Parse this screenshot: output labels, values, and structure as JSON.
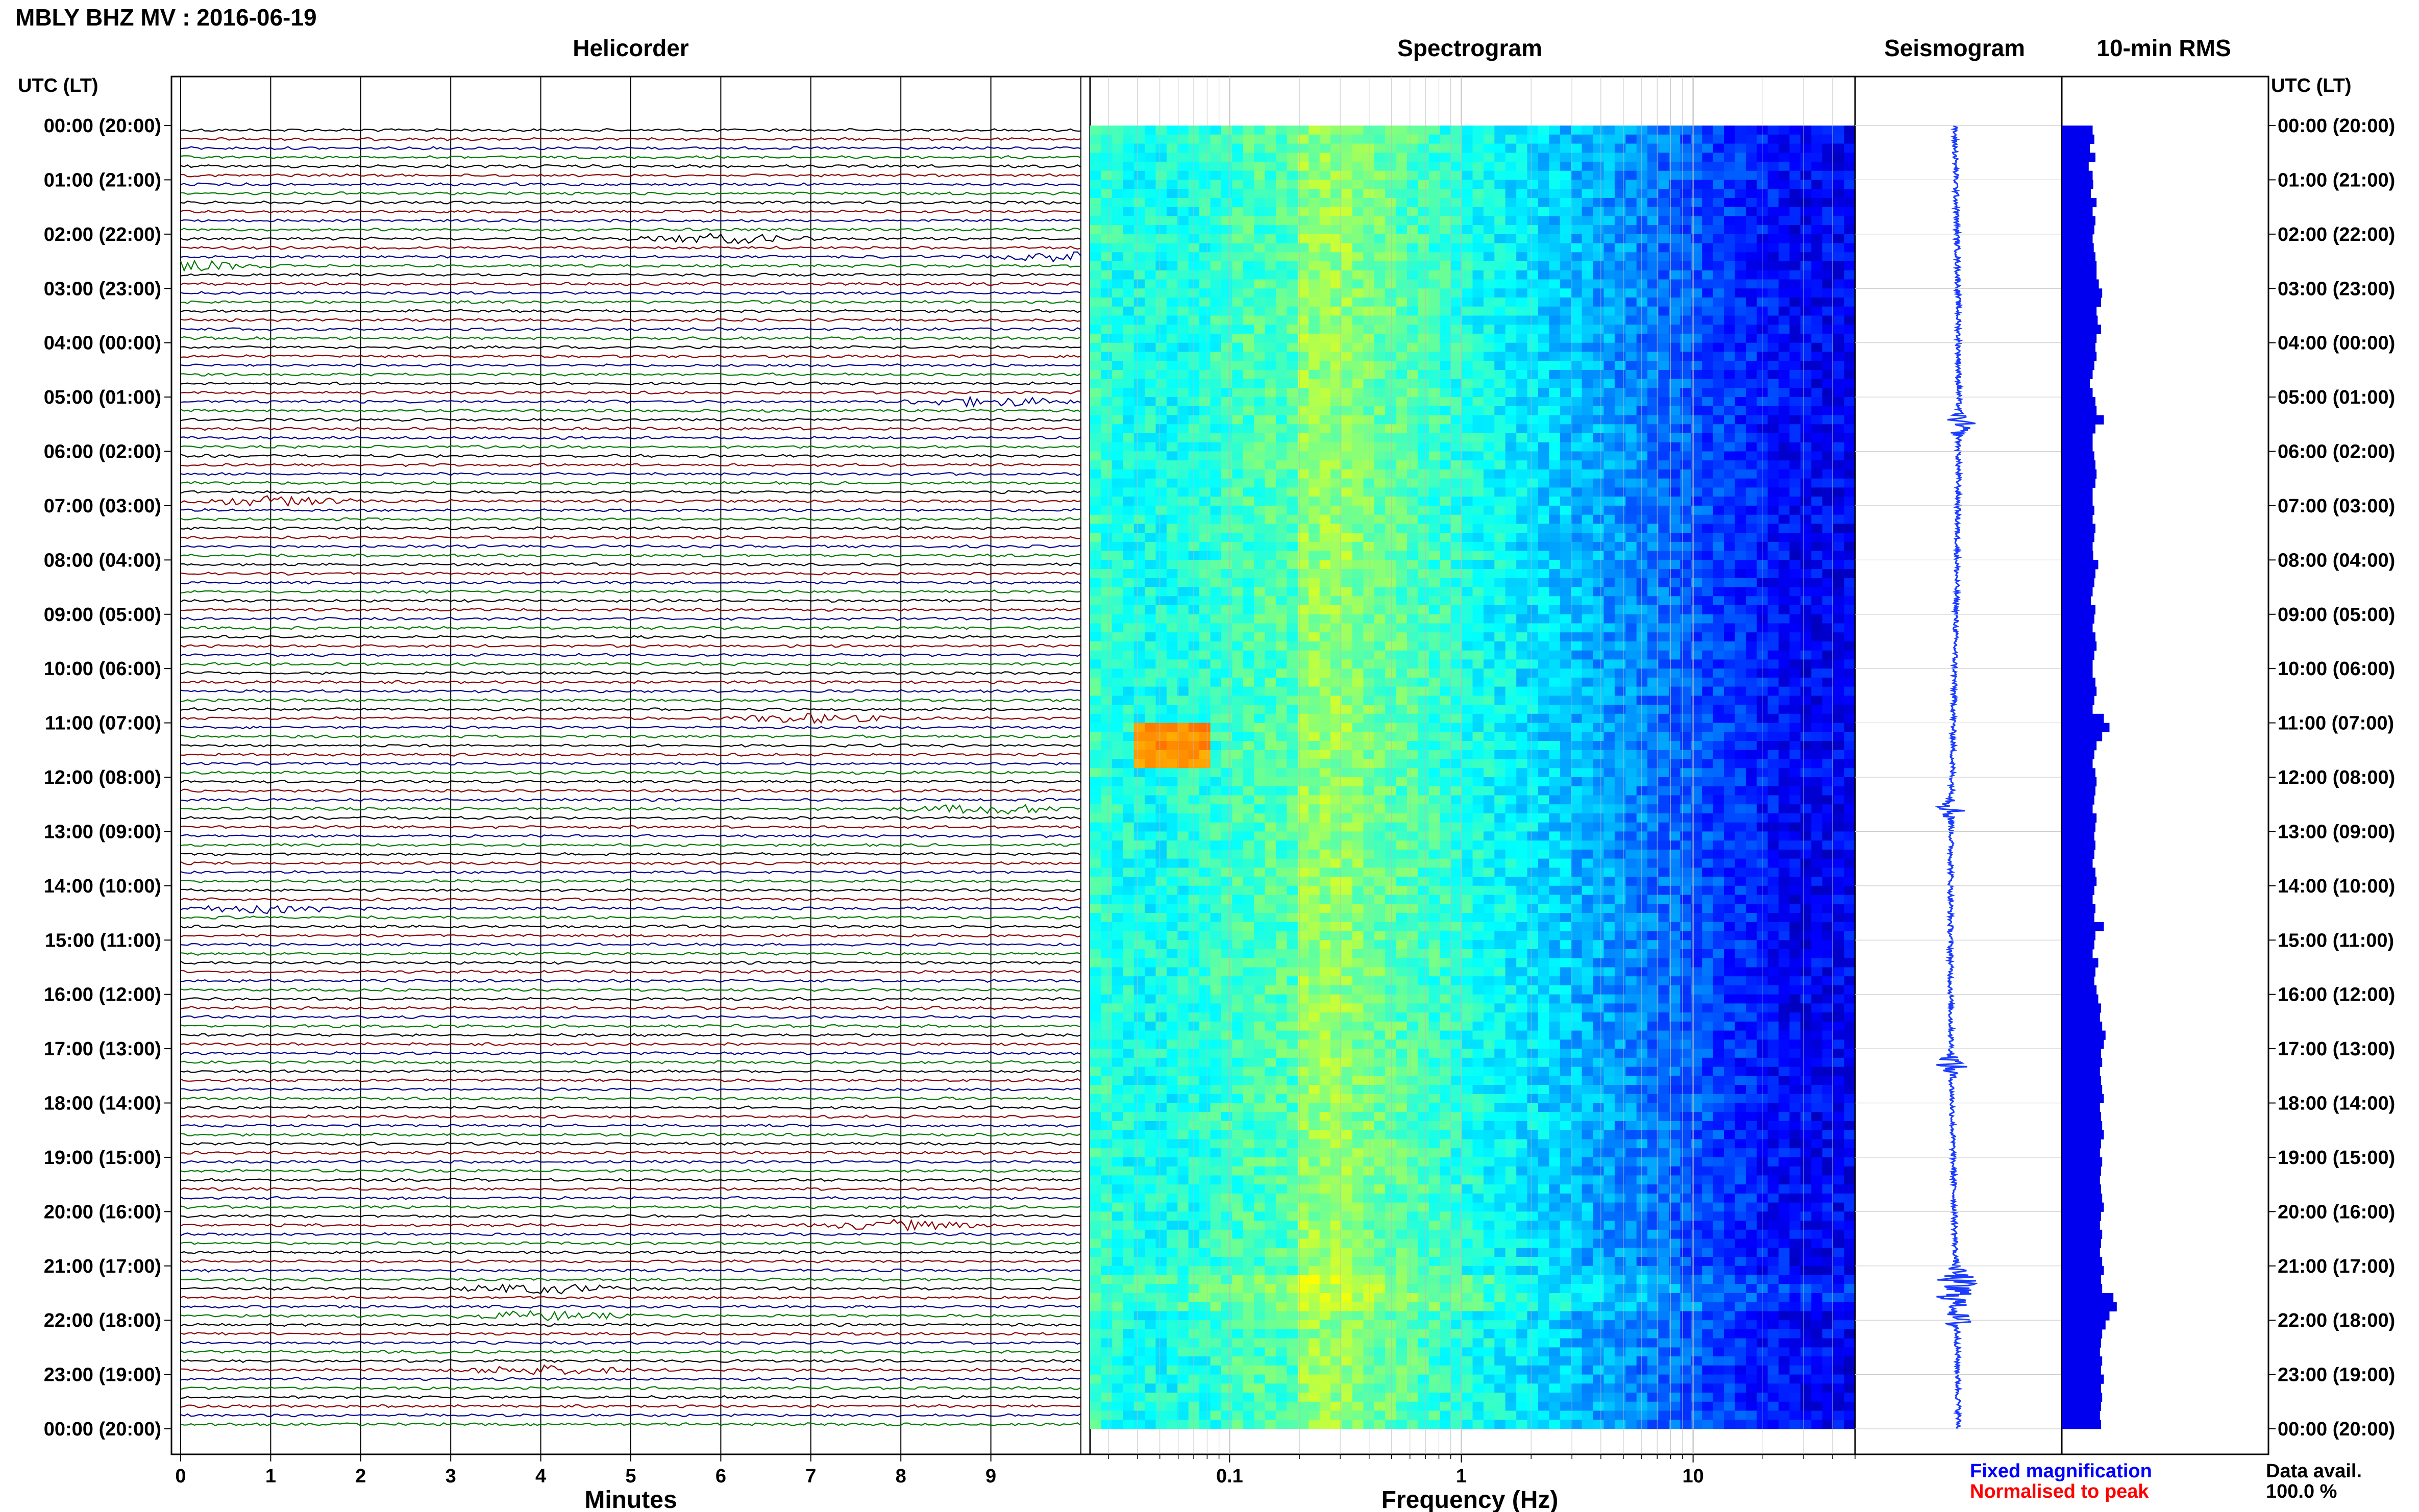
{
  "figure": {
    "title": "MBLY BHZ MV : 2016-06-19"
  },
  "colors": {
    "trace_cycle": [
      "#000000",
      "#8b0000",
      "#00008b",
      "#007a00"
    ],
    "fixed_magnification": "#0000ff",
    "normalised_to_peak": "#ff0000",
    "rms_fill": "#0000ee",
    "seismo_fill": "#1a3cff"
  },
  "chart_data": [
    {
      "type": "line",
      "panel": "helicorder",
      "title": "Helicorder",
      "xlabel": "Minutes",
      "ylabel": "UTC (LT)",
      "xlim": [
        0,
        10
      ],
      "x_ticks": [
        "0",
        "1",
        "2",
        "3",
        "4",
        "5",
        "6",
        "7",
        "8",
        "9"
      ],
      "y_ticks_left": [
        "00:00 (20:00)",
        "01:00 (21:00)",
        "02:00 (22:00)",
        "03:00 (23:00)",
        "04:00 (00:00)",
        "05:00 (01:00)",
        "06:00 (02:00)",
        "07:00 (03:00)",
        "08:00 (04:00)",
        "09:00 (05:00)",
        "10:00 (06:00)",
        "11:00 (07:00)",
        "12:00 (08:00)",
        "13:00 (09:00)",
        "14:00 (10:00)",
        "15:00 (11:00)",
        "16:00 (12:00)",
        "17:00 (13:00)",
        "18:00 (14:00)",
        "19:00 (15:00)",
        "20:00 (16:00)",
        "21:00 (17:00)",
        "22:00 (18:00)",
        "23:00 (19:00)",
        "00:00 (20:00)"
      ],
      "rows": 144,
      "row_minutes": 10,
      "events_hours": [
        2.1,
        2.5,
        5.15,
        6.85,
        10.95,
        12.65,
        14.35,
        20.3,
        21.4,
        21.9,
        22.9
      ]
    },
    {
      "type": "heatmap",
      "panel": "spectrogram",
      "title": "Spectrogram",
      "xlabel": "Frequency (Hz)",
      "x_scale": "log",
      "xlim": [
        0.025,
        50
      ],
      "x_ticks": [
        "0.1",
        "1",
        "10"
      ],
      "high_energy": [
        {
          "freq_range_hz": [
            0.04,
            0.08
          ],
          "hours": [
            11.0,
            11.8
          ]
        },
        {
          "freq_range_hz": [
            0.2,
            0.35
          ],
          "hours": [
            0,
            24
          ]
        }
      ]
    },
    {
      "type": "line",
      "panel": "seismogram",
      "title": "Seismogram",
      "bursts_hours": [
        5.5,
        12.6,
        17.3,
        21.2,
        21.4,
        21.6,
        22.0
      ]
    },
    {
      "type": "bar",
      "panel": "rms",
      "title": "10-min RMS",
      "ylabel_right": "UTC (LT)",
      "y_ticks_right": [
        "00:00 (20:00)",
        "01:00 (21:00)",
        "02:00 (22:00)",
        "03:00 (23:00)",
        "04:00 (00:00)",
        "05:00 (01:00)",
        "06:00 (02:00)",
        "07:00 (03:00)",
        "08:00 (04:00)",
        "09:00 (05:00)",
        "10:00 (06:00)",
        "11:00 (07:00)",
        "12:00 (08:00)",
        "13:00 (09:00)",
        "14:00 (10:00)",
        "15:00 (11:00)",
        "16:00 (12:00)",
        "17:00 (13:00)",
        "18:00 (14:00)",
        "19:00 (15:00)",
        "20:00 (16:00)",
        "21:00 (17:00)",
        "22:00 (18:00)",
        "23:00 (19:00)",
        "00:00 (20:00)"
      ],
      "values_by_hour": [
        0.55,
        0.58,
        0.5,
        0.6,
        0.48,
        0.55,
        0.56,
        0.52,
        0.62,
        0.55,
        0.6,
        0.58,
        0.55,
        0.57,
        0.6,
        0.62,
        0.62,
        0.66,
        0.72,
        0.7,
        0.62,
        0.64,
        0.7,
        0.62,
        0.6,
        0.62,
        0.58,
        0.55,
        0.5,
        0.55,
        0.6,
        0.62,
        0.75,
        0.6,
        0.55,
        0.55,
        0.58,
        0.6,
        0.62,
        0.6,
        0.55,
        0.55,
        0.58,
        0.55,
        0.6,
        0.58,
        0.55,
        0.56,
        0.65,
        0.6,
        0.58,
        0.55,
        0.52,
        0.6,
        0.58,
        0.55,
        0.6,
        0.62,
        0.58,
        0.55,
        0.55,
        0.6,
        0.62,
        0.58,
        0.55,
        0.75,
        0.85,
        0.72,
        0.62,
        0.58,
        0.55,
        0.6,
        0.62,
        0.6,
        0.58,
        0.55,
        0.62,
        0.6,
        0.58,
        0.6,
        0.58,
        0.55,
        0.6,
        0.62,
        0.58,
        0.55,
        0.6,
        0.58,
        0.75,
        0.6,
        0.58,
        0.55,
        0.65,
        0.6,
        0.58,
        0.62,
        0.65,
        0.7,
        0.68,
        0.72,
        0.78,
        0.75,
        0.7,
        0.72,
        0.68,
        0.7,
        0.72,
        0.75,
        0.68,
        0.7,
        0.72,
        0.75,
        0.7,
        0.68,
        0.72,
        0.7,
        0.68,
        0.7,
        0.72,
        0.75,
        0.7,
        0.68,
        0.72,
        0.7,
        0.68,
        0.72,
        0.75,
        0.7,
        0.72,
        0.92,
        0.98,
        0.85,
        0.78,
        0.72,
        0.7,
        0.68,
        0.72,
        0.7,
        0.75,
        0.7,
        0.72,
        0.7,
        0.68,
        0.7
      ]
    }
  ],
  "legend": {
    "fixed_magnification": "Fixed magnification",
    "normalised_to_peak": "Normalised to peak"
  },
  "data_availability": {
    "label": "Data avail.",
    "value": "100.0 %"
  }
}
